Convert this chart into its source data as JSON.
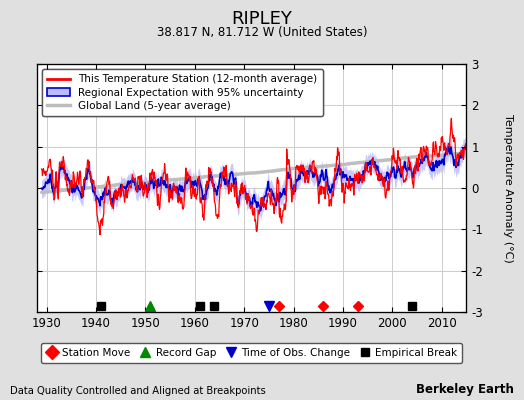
{
  "title": "RIPLEY",
  "subtitle": "38.817 N, 81.712 W (United States)",
  "ylabel": "Temperature Anomaly (°C)",
  "xlabel_footer": "Data Quality Controlled and Aligned at Breakpoints",
  "footer_right": "Berkeley Earth",
  "ylim": [
    -3,
    3
  ],
  "xlim": [
    1928,
    2015
  ],
  "xticks": [
    1930,
    1940,
    1950,
    1960,
    1970,
    1980,
    1990,
    2000,
    2010
  ],
  "yticks": [
    -3,
    -2,
    -1,
    0,
    1,
    2,
    3
  ],
  "background_color": "#e0e0e0",
  "plot_bg_color": "#ffffff",
  "station_color": "#ff0000",
  "regional_color": "#0000ff",
  "regional_fill_color": "#aaaaff",
  "global_color": "#bbbbbb",
  "legend_entries": [
    "This Temperature Station (12-month average)",
    "Regional Expectation with 95% uncertainty",
    "Global Land (5-year average)"
  ],
  "markers": {
    "station_move": {
      "years": [
        1977,
        1986,
        1993
      ],
      "color": "#ff0000",
      "marker": "D",
      "label": "Station Move"
    },
    "record_gap": {
      "years": [
        1951
      ],
      "color": "#008000",
      "marker": "^",
      "label": "Record Gap"
    },
    "time_obs_change": {
      "years": [
        1975
      ],
      "color": "#0000ff",
      "marker": "v",
      "label": "Time of Obs. Change"
    },
    "empirical_break": {
      "years": [
        1941,
        1961,
        1964,
        2004
      ],
      "color": "#000000",
      "marker": "s",
      "label": "Empirical Break"
    }
  }
}
